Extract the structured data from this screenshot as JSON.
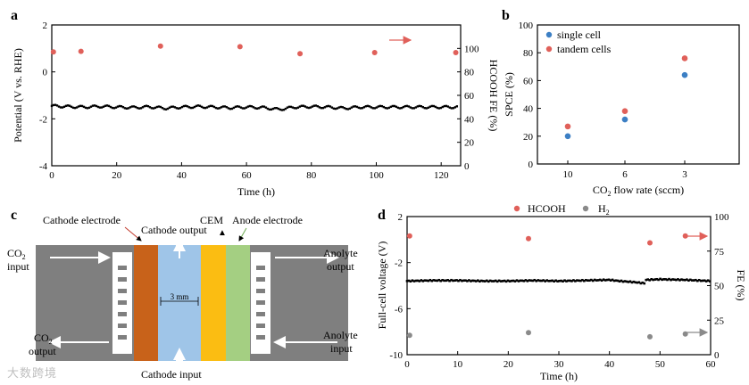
{
  "panels": {
    "a": {
      "label": "a",
      "xlabel": "Time (h)",
      "ylabel_left": "Potential (V vs. RHE)",
      "ylabel_right": "HCOOH FE (%)",
      "xticks": [
        "0",
        "20",
        "40",
        "60",
        "80",
        "100",
        "120"
      ],
      "yticks_left": [
        "2",
        "0",
        "-2",
        "-4"
      ],
      "yticks_right": [
        "100",
        "80",
        "60",
        "40",
        "20",
        "0"
      ]
    },
    "b": {
      "label": "b",
      "xlabel": "CO2 flow rate (sccm)",
      "xlabel_main": "CO",
      "xlabel_sub": "2",
      "xlabel_rest": " flow rate (sccm)",
      "ylabel": "SPCE (%)",
      "xticks": [
        "10",
        "6",
        "3"
      ],
      "yticks": [
        "100",
        "80",
        "60",
        "40",
        "20",
        "0"
      ],
      "legend": [
        "single cell",
        "tandem cells"
      ]
    },
    "c": {
      "label": "c",
      "cathode_electrode": "Cathode electrode",
      "cathode_output": "Cathode output",
      "cem": "CEM",
      "anode_electrode": "Anode electrode",
      "co2_input_main": "CO",
      "co2_sub": "2",
      "input": "input",
      "output": "output",
      "anolyte": "Anolyte",
      "gap": "3 mm",
      "cathode_input": "Cathode input"
    },
    "d": {
      "label": "d",
      "xlabel": "Time (h)",
      "ylabel_left": "Full-cell voltage (V)",
      "ylabel_right": "FE (%)",
      "xticks": [
        "0",
        "10",
        "20",
        "30",
        "40",
        "50",
        "60"
      ],
      "yticks_left": [
        "2",
        "-2",
        "-6",
        "-10"
      ],
      "yticks_right": [
        "100",
        "75",
        "50",
        "25",
        "0"
      ],
      "legend": [
        "HCOOH",
        "H2"
      ],
      "legend_h_main": "H",
      "legend_h_sub": "2"
    }
  },
  "watermark": "大数跨境",
  "colors": {
    "red_marker": "#e0605a",
    "blue_marker": "#3c7fc4",
    "gray_marker": "#8a8a8a",
    "black": "#000000",
    "cathode": "#c8621a",
    "catholyte": "#9fc5e8",
    "cem": "#fbbd12",
    "anode": "#a4cf82",
    "plate": "#7f7f7f"
  },
  "chart_data": [
    {
      "panel": "a",
      "type": "scatter",
      "x_range": [
        0,
        126
      ],
      "y_left_range": [
        -4,
        2
      ],
      "y_right_range": [
        0,
        120
      ],
      "series": [
        {
          "name": "Potential",
          "axis": "left",
          "x": [
            0,
            5,
            10,
            15,
            20,
            25,
            30,
            35,
            40,
            45,
            50,
            55,
            60,
            65,
            70,
            75,
            80,
            85,
            90,
            95,
            100,
            105,
            110,
            115,
            120,
            125
          ],
          "y": [
            -1.45,
            -1.48,
            -1.5,
            -1.47,
            -1.5,
            -1.52,
            -1.49,
            -1.55,
            -1.5,
            -1.48,
            -1.5,
            -1.53,
            -1.5,
            -1.52,
            -1.6,
            -1.5,
            -1.48,
            -1.5,
            -1.55,
            -1.5,
            -1.5,
            -1.5,
            -1.5,
            -1.5,
            -1.5,
            -1.5
          ]
        },
        {
          "name": "HCOOH FE",
          "axis": "right",
          "x": [
            0.5,
            9,
            33.5,
            58,
            76.5,
            99.5,
            124.5
          ],
          "y": [
            97,
            97.5,
            102,
            101.5,
            95.5,
            96.5,
            96.5
          ]
        }
      ]
    },
    {
      "panel": "b",
      "type": "scatter",
      "categories": [
        "10",
        "6",
        "3"
      ],
      "ylim": [
        0,
        100
      ],
      "series": [
        {
          "name": "single cell",
          "values": [
            20,
            32,
            64
          ]
        },
        {
          "name": "tandem cells",
          "values": [
            27,
            38,
            76
          ]
        }
      ]
    },
    {
      "panel": "d",
      "type": "scatter",
      "x_range": [
        0,
        60
      ],
      "y_left_range": [
        -10,
        2
      ],
      "y_right_range": [
        0,
        100
      ],
      "series": [
        {
          "name": "Full-cell voltage",
          "axis": "left",
          "x": [
            0,
            5,
            10,
            15,
            20,
            25,
            30,
            35,
            40,
            42,
            45,
            47,
            47.2,
            50,
            55,
            60
          ],
          "y": [
            -3.6,
            -3.55,
            -3.55,
            -3.6,
            -3.6,
            -3.55,
            -3.6,
            -3.55,
            -3.5,
            -3.6,
            -3.7,
            -3.8,
            -3.5,
            -3.45,
            -3.5,
            -3.6
          ]
        },
        {
          "name": "HCOOH",
          "axis": "right",
          "x": [
            0.5,
            24,
            48,
            55
          ],
          "y": [
            86,
            84,
            81,
            86
          ]
        },
        {
          "name": "H2",
          "axis": "right",
          "x": [
            0.5,
            24,
            48,
            55
          ],
          "y": [
            14,
            16,
            13,
            15
          ]
        }
      ]
    }
  ]
}
